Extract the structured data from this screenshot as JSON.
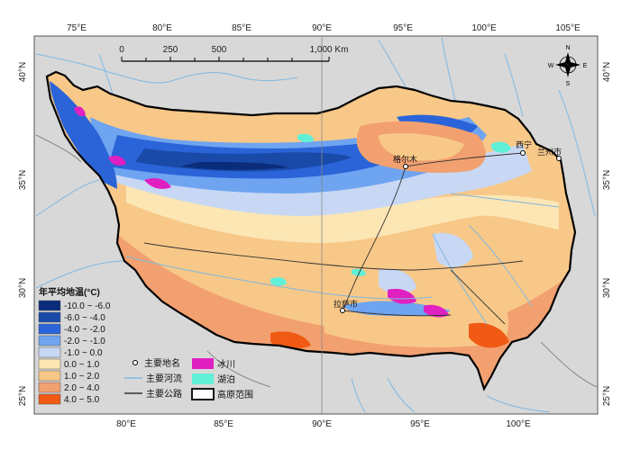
{
  "map": {
    "top_ticks": [
      "75°E",
      "80°E",
      "85°E",
      "90°E",
      "95°E",
      "100°E",
      "105°E"
    ],
    "bottom_ticks": [
      "80°E",
      "85°E",
      "90°E",
      "95°E",
      "100°E"
    ],
    "left_ticks": [
      "40°N",
      "35°N",
      "30°N",
      "25°N"
    ],
    "right_ticks": [
      "40°N",
      "35°N",
      "30°N",
      "25°N"
    ],
    "scale_bar": {
      "labels": [
        "0",
        "250",
        "500",
        "1,000 Km"
      ]
    },
    "compass": {
      "n": "N",
      "s": "S",
      "e": "E",
      "w": "W"
    },
    "cities": [
      "西宁",
      "兰州市",
      "格尔木",
      "拉萨市"
    ],
    "colors": {
      "glacier": "#e020c0",
      "lake": "#60f0d8",
      "river": "#80b8e0",
      "road": "#333333",
      "border": "#000000",
      "background_land": "#d8d8d8"
    }
  },
  "legend": {
    "title": "年平均地温(°C)",
    "classes": [
      {
        "label": "-10.0 ~ -6.0",
        "color": "#0a2c7a"
      },
      {
        "label": "-6.0 ~ -4.0",
        "color": "#1a4aa8"
      },
      {
        "label": "-4.0 ~ -2.0",
        "color": "#2a64d8"
      },
      {
        "label": "-2.0 ~ -1.0",
        "color": "#6fa4f0"
      },
      {
        "label": "-1.0 ~ 0.0",
        "color": "#c8d8f4"
      },
      {
        "label": "0.0 ~ 1.0",
        "color": "#fbe6b4"
      },
      {
        "label": "1.0 ~ 2.0",
        "color": "#f8c888"
      },
      {
        "label": "2.0 ~ 4.0",
        "color": "#f2a070"
      },
      {
        "label": "4.0 ~ 5.0",
        "color": "#f05a14"
      }
    ],
    "symbols": {
      "place": "主要地名",
      "river": "主要河流",
      "road": "主要公路",
      "glacier": "冰川",
      "lake": "湖泊",
      "boundary": "高原范围"
    }
  }
}
